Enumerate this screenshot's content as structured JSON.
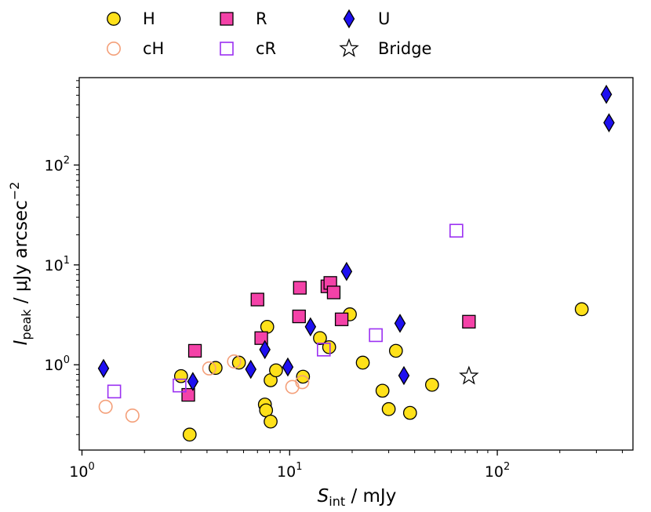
{
  "chart_data": {
    "type": "scatter",
    "xscale": "log",
    "yscale": "log",
    "xlim": [
      0.97,
      450
    ],
    "ylim": [
      0.14,
      750
    ],
    "xlabel": {
      "symbol": "S",
      "subscript": "int",
      "rest": " / mJy"
    },
    "ylabel": {
      "symbol": "I",
      "subscript": "peak",
      "rest": " / μJy arcsec",
      "superscript": "−2"
    },
    "x_ticks": [
      {
        "value": 1,
        "base": "10",
        "exp": "0"
      },
      {
        "value": 10,
        "base": "10",
        "exp": "1"
      },
      {
        "value": 100,
        "base": "10",
        "exp": "2"
      }
    ],
    "y_ticks": [
      {
        "value": 1,
        "base": "10",
        "exp": "0"
      },
      {
        "value": 10,
        "base": "10",
        "exp": "1"
      },
      {
        "value": 100,
        "base": "10",
        "exp": "2"
      }
    ],
    "series": [
      {
        "name": "H",
        "marker": "circle",
        "fill": "#FFE11A",
        "stroke": "#000000",
        "points": [
          [
            3.0,
            0.77
          ],
          [
            3.3,
            0.2
          ],
          [
            4.4,
            0.93
          ],
          [
            5.7,
            1.05
          ],
          [
            7.8,
            2.4
          ],
          [
            7.6,
            0.4
          ],
          [
            7.7,
            0.35
          ],
          [
            8.1,
            0.27
          ],
          [
            8.1,
            0.7
          ],
          [
            8.6,
            0.88
          ],
          [
            11.6,
            0.76
          ],
          [
            14.0,
            1.85
          ],
          [
            15.5,
            1.5
          ],
          [
            19.5,
            3.2
          ],
          [
            22.5,
            1.05
          ],
          [
            28.0,
            0.55
          ],
          [
            30.0,
            0.36
          ],
          [
            32.5,
            1.38
          ],
          [
            38.0,
            0.33
          ],
          [
            48.5,
            0.63
          ],
          [
            255.0,
            3.6
          ]
        ]
      },
      {
        "name": "cH",
        "marker": "circle-open",
        "fill": "none",
        "stroke": "#F4A07A",
        "points": [
          [
            1.3,
            0.38
          ],
          [
            1.75,
            0.31
          ],
          [
            4.1,
            0.92
          ],
          [
            5.4,
            1.08
          ],
          [
            10.3,
            0.6
          ],
          [
            11.5,
            0.67
          ]
        ]
      },
      {
        "name": "R",
        "marker": "square",
        "fill": "#F442A8",
        "stroke": "#000000",
        "points": [
          [
            3.25,
            0.5
          ],
          [
            3.5,
            1.38
          ],
          [
            7.0,
            4.5
          ],
          [
            7.3,
            1.85
          ],
          [
            11.1,
            3.05
          ],
          [
            11.2,
            5.9
          ],
          [
            15.2,
            6.1
          ],
          [
            15.7,
            6.6
          ],
          [
            16.3,
            5.3
          ],
          [
            17.8,
            2.85
          ],
          [
            73.0,
            2.7
          ]
        ]
      },
      {
        "name": "cR",
        "marker": "square-open",
        "fill": "none",
        "stroke": "#9B30F2",
        "points": [
          [
            1.43,
            0.54
          ],
          [
            2.95,
            0.62
          ],
          [
            14.6,
            1.42
          ],
          [
            26.0,
            1.98
          ],
          [
            63.5,
            22.0
          ]
        ]
      },
      {
        "name": "U",
        "marker": "diamond",
        "fill": "#1E10F0",
        "stroke": "#000000",
        "points": [
          [
            1.27,
            0.92
          ],
          [
            3.42,
            0.68
          ],
          [
            6.5,
            0.9
          ],
          [
            7.6,
            1.42
          ],
          [
            9.8,
            0.95
          ],
          [
            12.6,
            2.4
          ],
          [
            18.8,
            8.6
          ],
          [
            34.0,
            2.6
          ],
          [
            35.5,
            0.78
          ],
          [
            335.0,
            510.0
          ],
          [
            345.0,
            265.0
          ]
        ]
      },
      {
        "name": "Bridge",
        "marker": "star",
        "fill": "#ffffff",
        "stroke": "#000000",
        "points": [
          [
            73.0,
            0.77
          ]
        ]
      }
    ]
  },
  "legend": [
    {
      "label": "H",
      "marker": "circle",
      "fill": "#FFE11A",
      "stroke": "#000000"
    },
    {
      "label": "cH",
      "marker": "circle-open",
      "fill": "none",
      "stroke": "#F4A07A"
    },
    {
      "label": "R",
      "marker": "square",
      "fill": "#F442A8",
      "stroke": "#000000"
    },
    {
      "label": "cR",
      "marker": "square-open",
      "fill": "none",
      "stroke": "#9B30F2"
    },
    {
      "label": "U",
      "marker": "diamond",
      "fill": "#1E10F0",
      "stroke": "#000000"
    },
    {
      "label": "Bridge",
      "marker": "star",
      "fill": "#ffffff",
      "stroke": "#000000"
    }
  ]
}
